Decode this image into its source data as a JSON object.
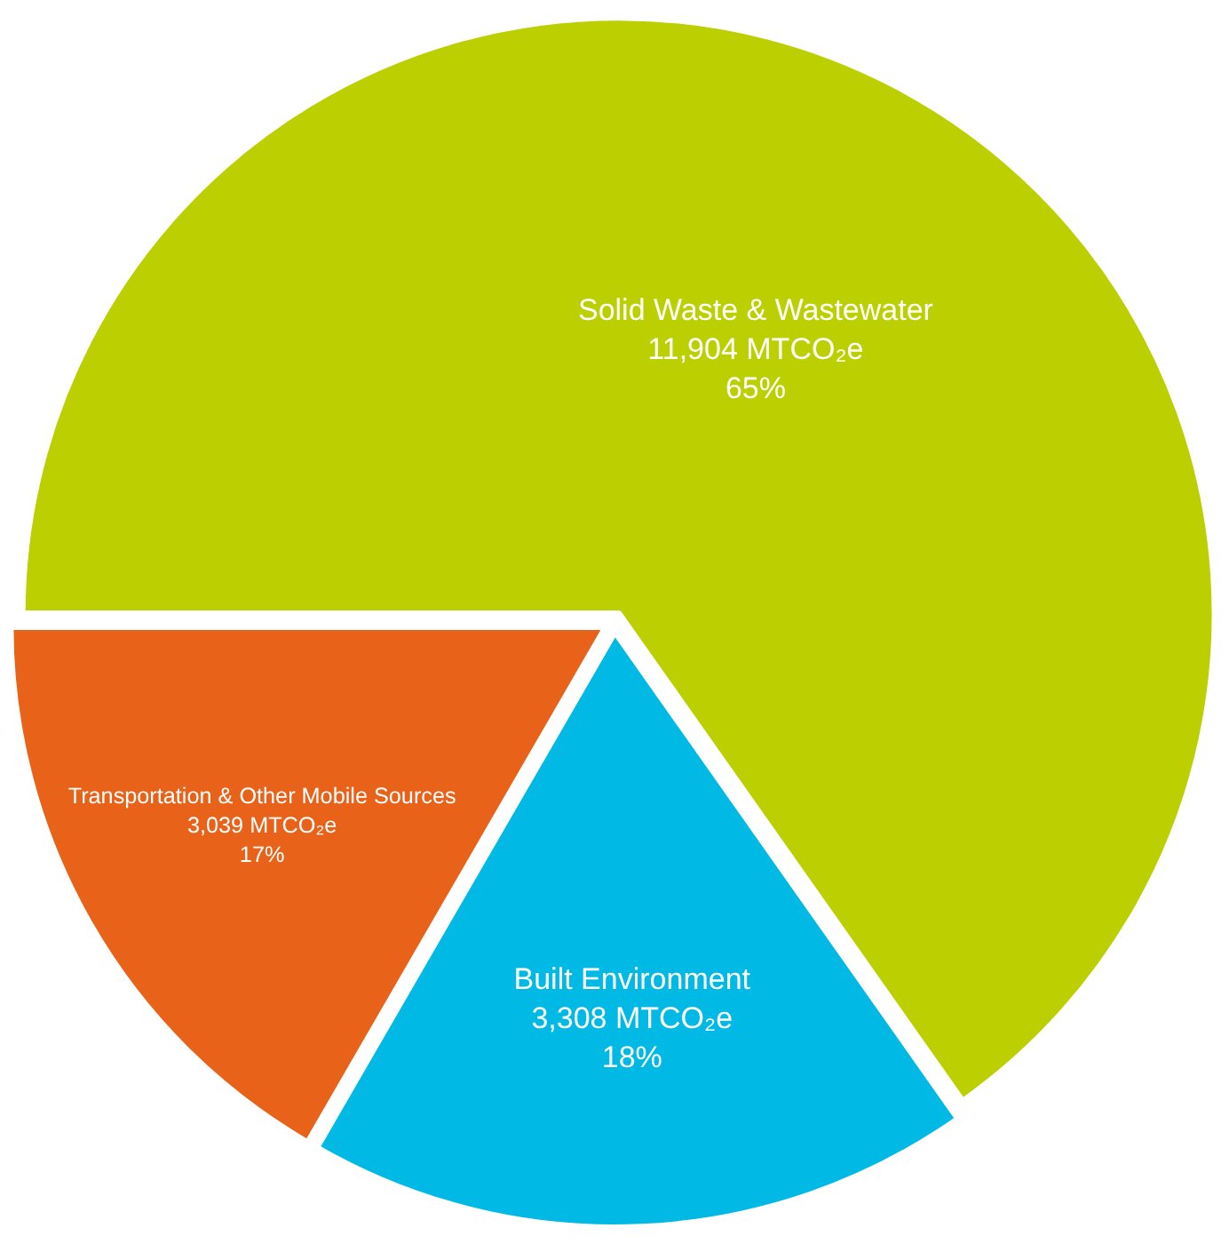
{
  "chart_data": {
    "type": "pie",
    "categories": [
      "Solid Waste & Wastewater",
      "Built Environment",
      "Transportation & Other Mobile Sources"
    ],
    "values": [
      11904,
      3308,
      3039
    ],
    "colors": [
      "#bccf00",
      "#00b9e4",
      "#e8621a"
    ],
    "value_labels": [
      "11,904 MTCO₂e\n65%",
      "3,308 MTCO₂e\n18%",
      "3,039 MTCO₂e\n17%"
    ],
    "legend": false
  }
}
